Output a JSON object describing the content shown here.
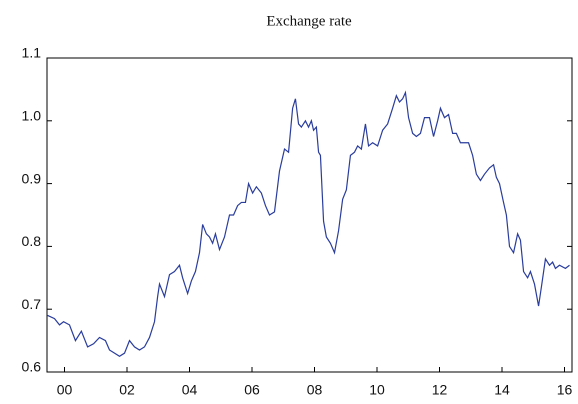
{
  "chart_data": {
    "type": "line",
    "title": "Exchange rate",
    "x": [
      1999.46,
      1999.68,
      1999.84,
      1999.97,
      2000.16,
      2000.35,
      2000.54,
      2000.74,
      2000.93,
      2001.12,
      2001.31,
      2001.44,
      2001.6,
      2001.76,
      2001.92,
      2002.08,
      2002.24,
      2002.4,
      2002.56,
      2002.72,
      2002.88,
      2002.98,
      2003.04,
      2003.2,
      2003.36,
      2003.52,
      2003.68,
      2003.78,
      2003.94,
      2004.06,
      2004.19,
      2004.32,
      2004.42,
      2004.54,
      2004.64,
      2004.74,
      2004.83,
      2004.96,
      2005.12,
      2005.28,
      2005.41,
      2005.54,
      2005.66,
      2005.79,
      2005.89,
      2006.02,
      2006.14,
      2006.3,
      2006.43,
      2006.56,
      2006.72,
      2006.88,
      2007.04,
      2007.17,
      2007.3,
      2007.39,
      2007.49,
      2007.58,
      2007.71,
      2007.81,
      2007.9,
      2007.97,
      2008.06,
      2008.13,
      2008.19,
      2008.29,
      2008.38,
      2008.51,
      2008.64,
      2008.77,
      2008.9,
      2009.02,
      2009.15,
      2009.28,
      2009.38,
      2009.5,
      2009.63,
      2009.73,
      2009.86,
      2010.02,
      2010.18,
      2010.34,
      2010.5,
      2010.62,
      2010.72,
      2010.82,
      2010.91,
      2011.01,
      2011.14,
      2011.26,
      2011.39,
      2011.52,
      2011.68,
      2011.81,
      2011.94,
      2012.03,
      2012.16,
      2012.29,
      2012.42,
      2012.54,
      2012.67,
      2012.8,
      2012.93,
      2013.06,
      2013.18,
      2013.31,
      2013.44,
      2013.6,
      2013.73,
      2013.82,
      2013.92,
      2014.05,
      2014.14,
      2014.24,
      2014.37,
      2014.5,
      2014.59,
      2014.69,
      2014.82,
      2014.91,
      2015.04,
      2015.17,
      2015.26,
      2015.39,
      2015.52,
      2015.62,
      2015.71,
      2015.84,
      2016.03,
      2016.16
    ],
    "values": [
      0.69,
      0.685,
      0.675,
      0.68,
      0.675,
      0.65,
      0.665,
      0.64,
      0.645,
      0.655,
      0.65,
      0.635,
      0.63,
      0.625,
      0.63,
      0.65,
      0.64,
      0.635,
      0.64,
      0.655,
      0.68,
      0.72,
      0.74,
      0.72,
      0.755,
      0.76,
      0.77,
      0.75,
      0.725,
      0.745,
      0.76,
      0.79,
      0.835,
      0.82,
      0.815,
      0.805,
      0.82,
      0.795,
      0.815,
      0.85,
      0.85,
      0.865,
      0.87,
      0.87,
      0.9,
      0.885,
      0.895,
      0.885,
      0.865,
      0.85,
      0.855,
      0.92,
      0.955,
      0.95,
      1.02,
      1.035,
      0.995,
      0.99,
      1.0,
      0.99,
      1.0,
      0.985,
      0.99,
      0.95,
      0.945,
      0.84,
      0.815,
      0.805,
      0.79,
      0.825,
      0.875,
      0.89,
      0.945,
      0.95,
      0.96,
      0.955,
      0.995,
      0.96,
      0.965,
      0.96,
      0.985,
      0.995,
      1.02,
      1.04,
      1.03,
      1.035,
      1.045,
      1.005,
      0.98,
      0.975,
      0.98,
      1.005,
      1.005,
      0.975,
      1.0,
      1.02,
      1.005,
      1.01,
      0.98,
      0.98,
      0.965,
      0.965,
      0.965,
      0.945,
      0.915,
      0.905,
      0.915,
      0.925,
      0.93,
      0.91,
      0.9,
      0.87,
      0.85,
      0.8,
      0.79,
      0.82,
      0.81,
      0.76,
      0.75,
      0.76,
      0.74,
      0.705,
      0.735,
      0.78,
      0.77,
      0.775,
      0.765,
      0.77,
      0.765,
      0.77
    ],
    "color": "#2a3d9c",
    "xlim": [
      1999.44,
      2016.24
    ],
    "xticks": [
      {
        "value": 2000,
        "label": "00"
      },
      {
        "value": 2002,
        "label": "02"
      },
      {
        "value": 2004,
        "label": "04"
      },
      {
        "value": 2006,
        "label": "06"
      },
      {
        "value": 2008,
        "label": "08"
      },
      {
        "value": 2010,
        "label": "10"
      },
      {
        "value": 2012,
        "label": "12"
      },
      {
        "value": 2014,
        "label": "14"
      },
      {
        "value": 2016,
        "label": "16"
      }
    ],
    "ylim": [
      0.6,
      1.1
    ],
    "yticks": [
      0.6,
      0.7,
      0.8,
      0.9,
      {
        "value": 1,
        "label": "1.0"
      },
      1.1
    ]
  }
}
